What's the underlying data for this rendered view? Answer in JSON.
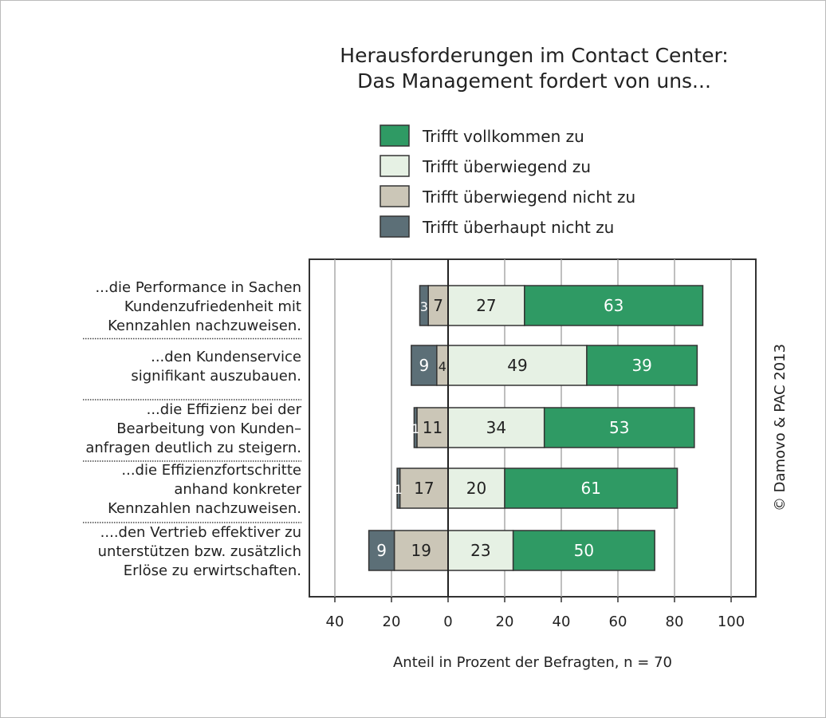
{
  "chart_data": {
    "type": "bar",
    "orientation": "horizontal",
    "stacked": "diverging",
    "title_lines": [
      "Herausforderungen im Contact Center:",
      "Das Management fordert von uns..."
    ],
    "xlabel": "Anteil in Prozent der Befragten, n = 70",
    "xlim": [
      -40,
      100
    ],
    "xticks": [
      -40,
      -20,
      0,
      20,
      40,
      60,
      80,
      100
    ],
    "xtick_labels": [
      "40",
      "20",
      "0",
      "20",
      "40",
      "60",
      "80",
      "100"
    ],
    "grid": "vertical",
    "legend_placement": "top",
    "copyright": "© Damovo & PAC 2013",
    "categories": [
      [
        "...die Performance in Sachen",
        "Kundenzufriedenheit mit",
        "Kennzahlen nachzuweisen."
      ],
      [
        "...den Kundenservice",
        "signifikant auszubauen."
      ],
      [
        "...die Effizienz bei der",
        "Bearbeitung von Kunden–",
        "anfragen deutlich zu steigern."
      ],
      [
        "...die Effizienzfortschritte",
        "anhand konkreter",
        "Kennzahlen nachzuweisen."
      ],
      [
        "....den Vertrieb effektiver zu",
        "unterstützen bzw. zusätzlich",
        "Erlöse zu erwirtschaften."
      ]
    ],
    "series": [
      {
        "name": "Trifft vollkommen zu",
        "side": "positive",
        "color": "#2f9a64",
        "label_color": "#ffffff",
        "values": [
          63,
          39,
          53,
          61,
          50
        ]
      },
      {
        "name": "Trifft überwiegend zu",
        "side": "positive",
        "color": "#e6f1e4",
        "label_color": "#222222",
        "values": [
          27,
          49,
          34,
          20,
          23
        ]
      },
      {
        "name": "Trifft überwiegend nicht zu",
        "side": "negative",
        "color": "#cbc6b7",
        "label_color": "#222222",
        "values": [
          7,
          4,
          11,
          17,
          19
        ]
      },
      {
        "name": "Trifft überhaupt nicht zu",
        "side": "negative",
        "color": "#5c6f77",
        "label_color": "#ffffff",
        "values": [
          3,
          9,
          1,
          1,
          9
        ]
      }
    ]
  }
}
